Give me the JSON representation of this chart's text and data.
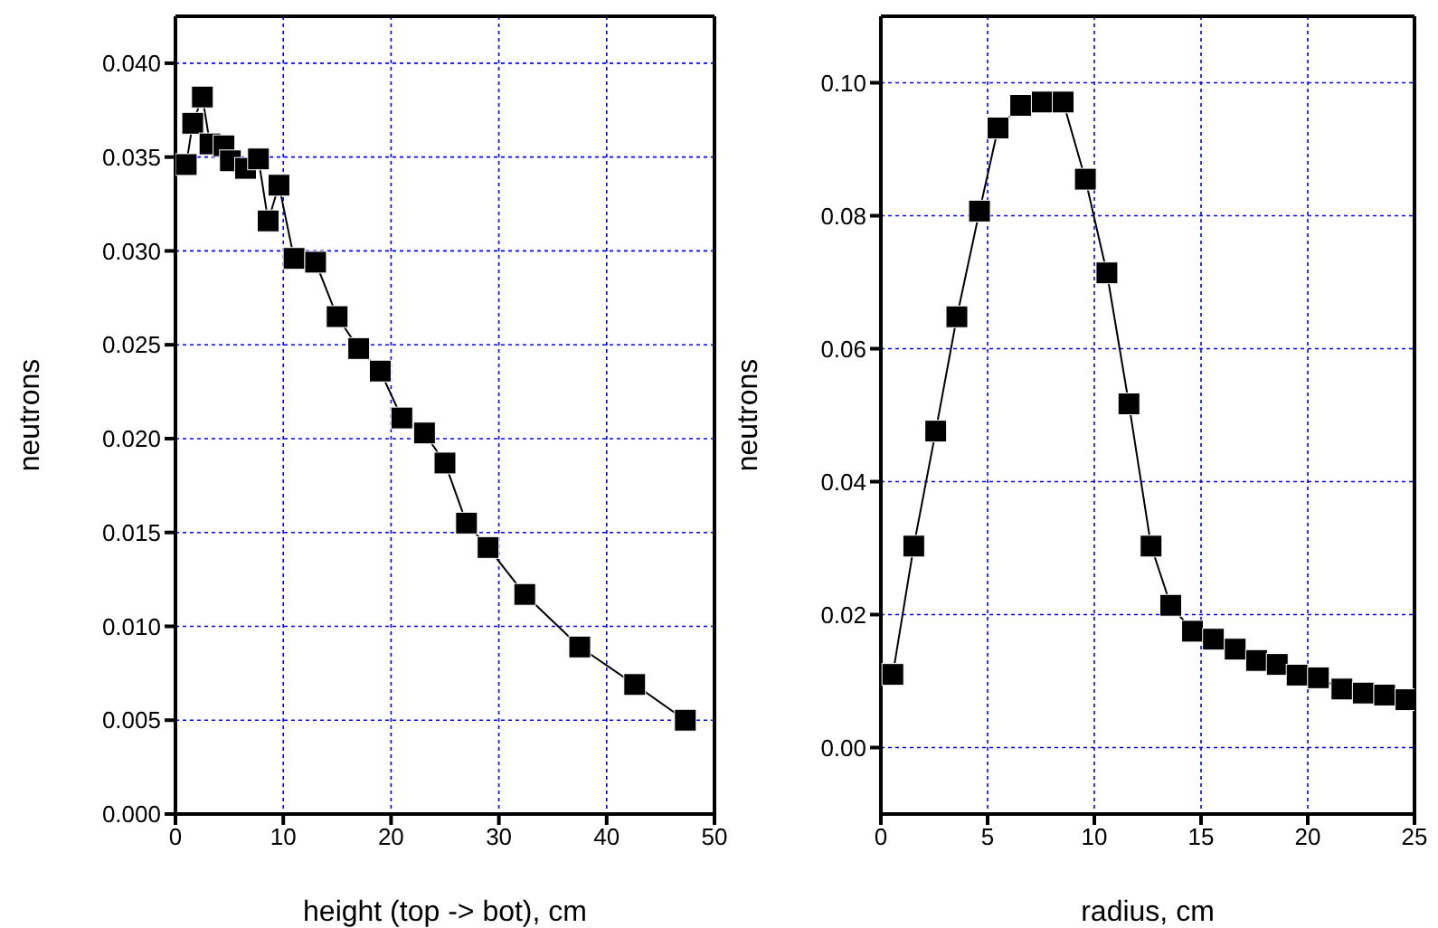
{
  "chart_data": [
    {
      "type": "line",
      "xlabel": "height (top -> bot), cm",
      "ylabel": "neutrons",
      "marker": "square",
      "line_style": "solid",
      "grid": true,
      "legend": false,
      "xlim": [
        0,
        50
      ],
      "xticks": [
        0,
        10,
        20,
        30,
        40,
        50
      ],
      "ylim": [
        0,
        0.0425
      ],
      "yticks": [
        {
          "value": 0,
          "label": "0.000"
        },
        {
          "value": 0.005,
          "label": "0.005"
        },
        {
          "value": 0.01,
          "label": "0.010"
        },
        {
          "value": 0.015,
          "label": "0.015"
        },
        {
          "value": 0.02,
          "label": "0.020"
        },
        {
          "value": 0.025,
          "label": "0.025"
        },
        {
          "value": 0.03,
          "label": "0.030"
        },
        {
          "value": 0.035,
          "label": "0.035"
        },
        {
          "value": 0.04,
          "label": "0.040"
        }
      ],
      "x": [
        1.0,
        1.6,
        2.5,
        3.2,
        4.5,
        5.1,
        6.5,
        7.7,
        8.6,
        9.6,
        11.0,
        13.0,
        15.0,
        17.0,
        19.0,
        21.0,
        23.1,
        25.0,
        27.0,
        29.0,
        32.4,
        37.5,
        42.6,
        47.3
      ],
      "series": [
        {
          "color": "#000000",
          "values": [
            0.0346,
            0.0368,
            0.0382,
            0.0357,
            0.0356,
            0.0348,
            0.0344,
            0.0349,
            0.0316,
            0.0335,
            0.0296,
            0.0294,
            0.0265,
            0.0248,
            0.0236,
            0.0211,
            0.0203,
            0.0187,
            0.0155,
            0.0142,
            0.0117,
            0.0089,
            0.0069,
            0.005
          ]
        }
      ]
    },
    {
      "type": "line",
      "xlabel": "radius, cm",
      "ylabel": "neutrons",
      "marker": "square",
      "line_style": "solid",
      "grid": true,
      "legend": false,
      "xlim": [
        0,
        25
      ],
      "xticks": [
        0,
        5,
        10,
        15,
        20,
        25
      ],
      "ylim": [
        -0.01,
        0.11
      ],
      "yticks": [
        {
          "value": 0,
          "label": "0.00"
        },
        {
          "value": 0.02,
          "label": "0.02"
        },
        {
          "value": 0.04,
          "label": "0.04"
        },
        {
          "value": 0.06,
          "label": "0.06"
        },
        {
          "value": 0.08,
          "label": "0.08"
        },
        {
          "value": 0.1,
          "label": "0.10"
        }
      ],
      "x": [
        0.56,
        1.54,
        2.57,
        3.56,
        4.62,
        5.49,
        6.55,
        7.56,
        8.54,
        9.58,
        10.59,
        11.62,
        12.66,
        13.58,
        14.6,
        15.58,
        16.6,
        17.6,
        18.57,
        19.5,
        20.5,
        21.6,
        22.6,
        23.6,
        24.6
      ],
      "series": [
        {
          "color": "#000000",
          "values": [
            0.011,
            0.0303,
            0.0476,
            0.0648,
            0.0807,
            0.0932,
            0.0966,
            0.0971,
            0.0971,
            0.0855,
            0.0714,
            0.0517,
            0.0303,
            0.0214,
            0.0175,
            0.0163,
            0.0148,
            0.0131,
            0.0125,
            0.0109,
            0.0105,
            0.0088,
            0.0082,
            0.0079,
            0.0072
          ]
        }
      ]
    }
  ]
}
